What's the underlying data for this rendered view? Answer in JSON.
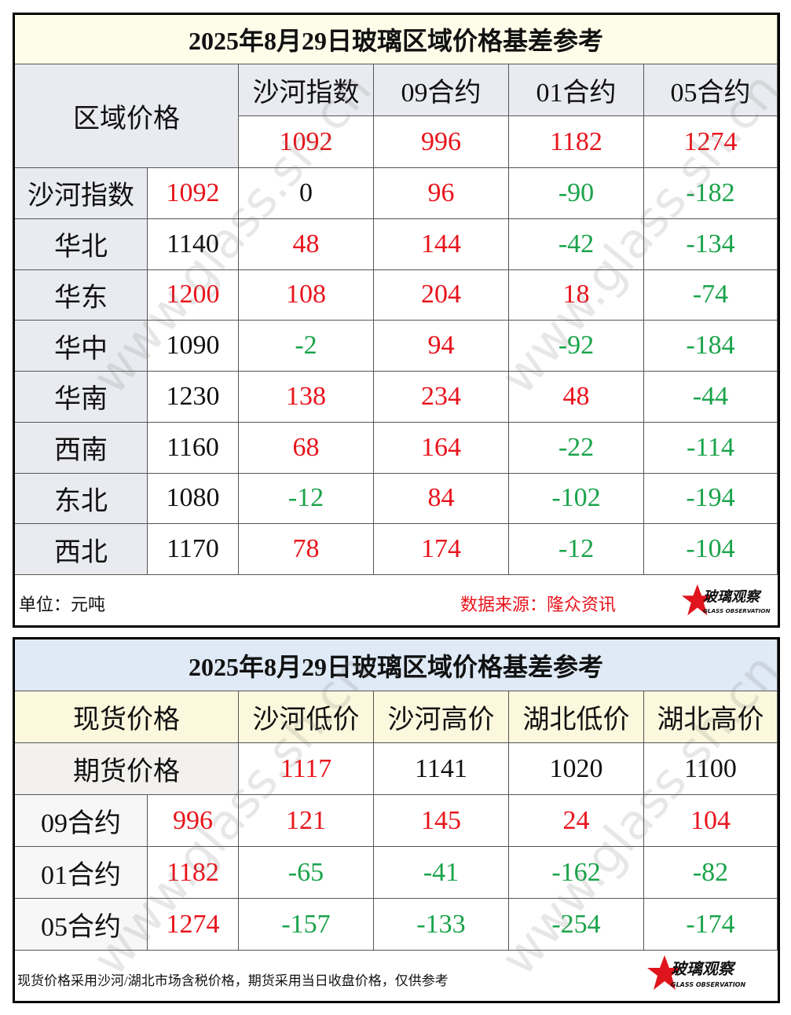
{
  "watermark": "www.glass.sh.cn",
  "logo": {
    "name": "玻璃观察",
    "sub": "GLASS OBSERVATION"
  },
  "colors": {
    "positive": "#e8141c",
    "negative": "#1aa34a",
    "zero": "#111111",
    "plain": "#111111"
  },
  "table1": {
    "title": "2025年8月29日玻璃区域价格基差参考",
    "corner": "区域价格",
    "columns": [
      "沙河指数",
      "09合约",
      "01合约",
      "05合约"
    ],
    "column_values": [
      1092,
      996,
      1182,
      1274
    ],
    "column_value_colors": [
      "positive",
      "positive",
      "positive",
      "positive"
    ],
    "rows": [
      {
        "label": "沙河指数",
        "price": 1092,
        "price_color": "positive",
        "values": [
          0,
          96,
          -90,
          -182
        ]
      },
      {
        "label": "华北",
        "price": 1140,
        "price_color": "plain",
        "values": [
          48,
          144,
          -42,
          -134
        ]
      },
      {
        "label": "华东",
        "price": 1200,
        "price_color": "positive",
        "values": [
          108,
          204,
          18,
          -74
        ]
      },
      {
        "label": "华中",
        "price": 1090,
        "price_color": "plain",
        "values": [
          -2,
          94,
          -92,
          -184
        ]
      },
      {
        "label": "华南",
        "price": 1230,
        "price_color": "plain",
        "values": [
          138,
          234,
          48,
          -44
        ]
      },
      {
        "label": "西南",
        "price": 1160,
        "price_color": "plain",
        "values": [
          68,
          164,
          -22,
          -114
        ]
      },
      {
        "label": "东北",
        "price": 1080,
        "price_color": "plain",
        "values": [
          -12,
          84,
          -102,
          -194
        ]
      },
      {
        "label": "西北",
        "price": 1170,
        "price_color": "plain",
        "values": [
          78,
          174,
          -12,
          -104
        ]
      }
    ],
    "unit": "单位：元吨",
    "source": "数据来源：隆众资讯"
  },
  "table2": {
    "title": "2025年8月29日玻璃区域价格基差参考",
    "corner": "现货价格",
    "subcorner": "期货价格",
    "columns": [
      "沙河低价",
      "沙河高价",
      "湖北低价",
      "湖北高价"
    ],
    "column_values": [
      1117,
      1141,
      1020,
      1100
    ],
    "column_value_colors": [
      "positive",
      "plain",
      "plain",
      "plain"
    ],
    "rows": [
      {
        "label": "09合约",
        "price": 996,
        "price_color": "positive",
        "values": [
          121,
          145,
          24,
          104
        ]
      },
      {
        "label": "01合约",
        "price": 1182,
        "price_color": "positive",
        "values": [
          -65,
          -41,
          -162,
          -82
        ]
      },
      {
        "label": "05合约",
        "price": 1274,
        "price_color": "positive",
        "values": [
          -157,
          -133,
          -254,
          -174
        ]
      }
    ],
    "note": "现货价格采用沙河/湖北市场含税价格，期货采用当日收盘价格，仅供参考"
  }
}
